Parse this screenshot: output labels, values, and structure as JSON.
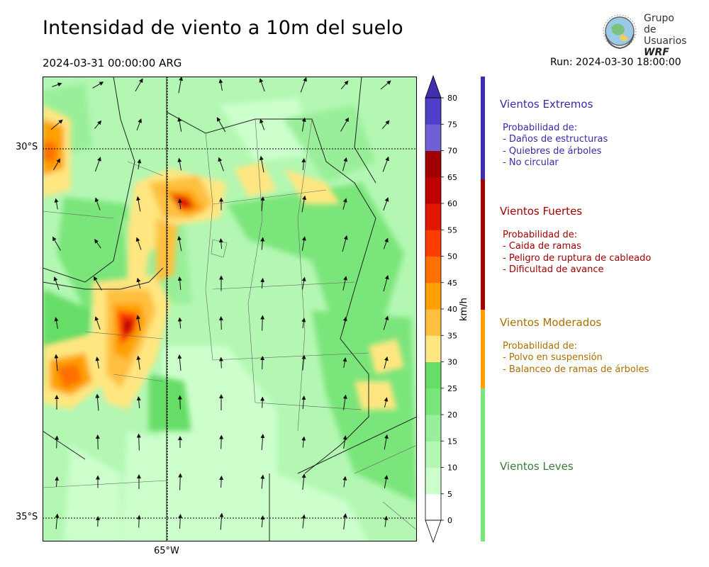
{
  "title": "Intensidad de viento a 10m del suelo",
  "valid_time": "2024-03-31 00:00:00 ARG",
  "run_time": "Run: 2024-03-30 18:00:00",
  "logo": {
    "line1": "Grupo de",
    "line2": "Usuarios",
    "line3": "WRF"
  },
  "map": {
    "lat_labels": [
      "30°S",
      "35°S"
    ],
    "lon_labels": [
      "65°W"
    ],
    "gridlines": "dotted"
  },
  "colorbar": {
    "unit": "km/h",
    "ticks": [
      "0",
      "5",
      "10",
      "15",
      "20",
      "25",
      "30",
      "35",
      "40",
      "45",
      "50",
      "55",
      "60",
      "65",
      "70",
      "75",
      "80"
    ],
    "colors": [
      "#ffffff",
      "#ccffcc",
      "#b3f7b3",
      "#99ee99",
      "#7ae57a",
      "#66dd66",
      "#ffe680",
      "#ffc040",
      "#ffa000",
      "#ff7000",
      "#ff3c00",
      "#e01800",
      "#c00000",
      "#a00000",
      "#7060d8",
      "#5040c8",
      "#4030b0"
    ],
    "extend": "both"
  },
  "categories": [
    {
      "title": "Vientos Extremos",
      "color": "#3c28a8",
      "bar_color": "#3b2fb0",
      "lines": [
        "Probabilidad de:",
        "- Daños de estructuras",
        "- Quiebres de árboles",
        "- No circular"
      ]
    },
    {
      "title": "Vientos Fuertes",
      "color": "#a00000",
      "bar_color": "#a00000",
      "lines": [
        "Probabilidad de:",
        "- Caida de ramas",
        "- Peligro de ruptura de cableado",
        "- Dificultad de avance"
      ]
    },
    {
      "title": "Vientos Moderados",
      "color": "#a87000",
      "bar_color": "#ffa000",
      "lines": [
        "Probabilidad de:",
        "- Polvo en suspensión",
        "- Balanceo de ramas de árboles"
      ]
    },
    {
      "title": "Vientos Leves",
      "color": "#3a7a3a",
      "bar_color": "#7ae57a",
      "lines": []
    }
  ]
}
